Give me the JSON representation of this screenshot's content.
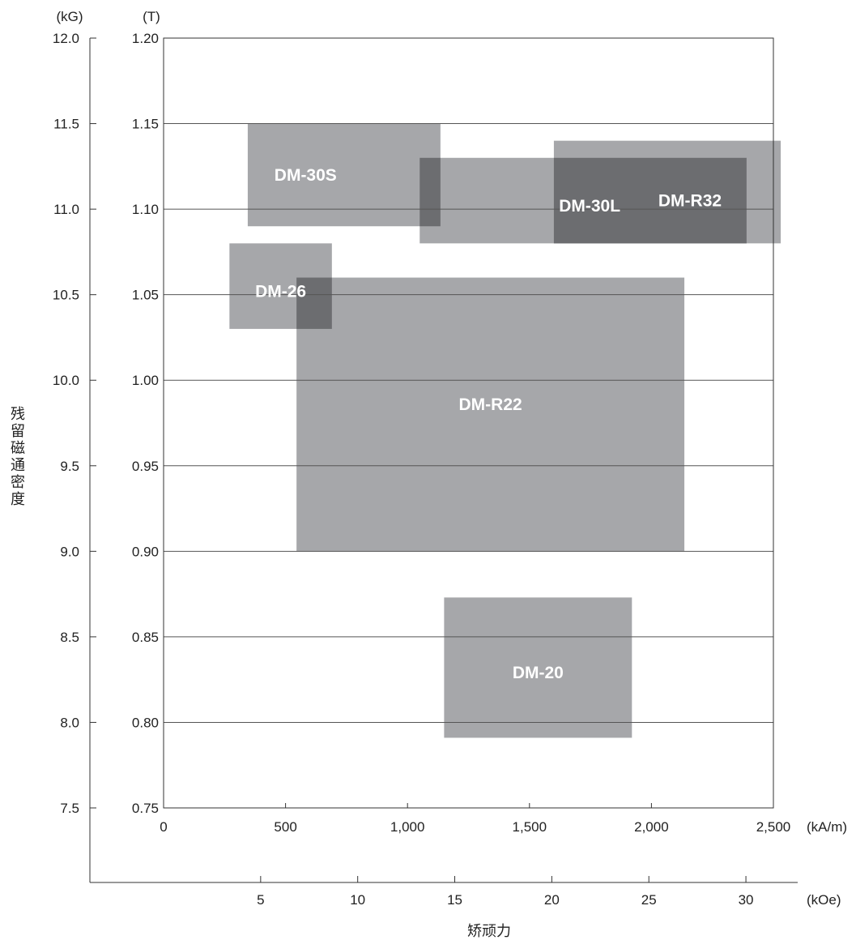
{
  "chart_data": {
    "type": "range-box",
    "ylabel": "残留磁通密度",
    "xlabel": "矫顽力",
    "units": {
      "y_left": "(kG)",
      "y_right": "(T)",
      "x_top": "(kA/m)",
      "x_bottom": "(kOe)"
    },
    "y_ticks_T": [
      "1.20",
      "1.15",
      "1.10",
      "1.05",
      "1.00",
      "0.95",
      "0.90",
      "0.85",
      "0.80",
      "0.75"
    ],
    "y_ticks_kG": [
      "12.0",
      "11.5",
      "11.0",
      "10.5",
      "10.0",
      "9.5",
      "9.0",
      "8.5",
      "8.0",
      "7.5"
    ],
    "x_ticks_kAm": [
      "0",
      "500",
      "1,000",
      "1,500",
      "2,000",
      "2,500"
    ],
    "x_ticks_kOe": [
      "5",
      "10",
      "15",
      "20",
      "25",
      "30"
    ],
    "ylim_T": [
      0.75,
      1.2
    ],
    "xlim_kAm": [
      0,
      2500
    ],
    "grid": true,
    "series": [
      {
        "name": "DM-30S",
        "x": [
          345,
          1135
        ],
        "y": [
          1.09,
          1.15
        ],
        "color": "#a6a7aa"
      },
      {
        "name": "DM-30L",
        "x": [
          1050,
          2390
        ],
        "y": [
          1.08,
          1.13
        ],
        "color": "#a6a7aa"
      },
      {
        "name": "DM-R32",
        "x": [
          1600,
          2530
        ],
        "y": [
          1.08,
          1.14
        ],
        "color": "#a6a7aa"
      },
      {
        "name": "DM-26",
        "x": [
          270,
          690
        ],
        "y": [
          1.03,
          1.08
        ],
        "color": "#a6a7aa"
      },
      {
        "name": "DM-R22",
        "x": [
          545,
          2135
        ],
        "y": [
          0.9,
          1.06
        ],
        "color": "#a6a7aa"
      },
      {
        "name": "DM-20",
        "x": [
          1150,
          1920
        ],
        "y": [
          0.791,
          0.873
        ],
        "color": "#a6a7aa"
      }
    ],
    "overlap_color": "#6c6d70"
  }
}
